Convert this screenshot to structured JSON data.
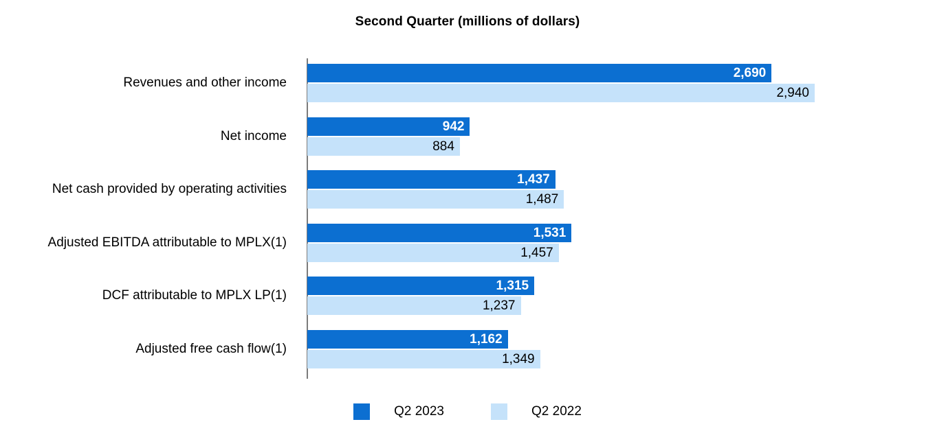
{
  "title": "Second Quarter (millions of dollars)",
  "colors": {
    "series_q2_2023": "#0c6fd1",
    "series_q2_2022": "#c5e2fa",
    "axis_line": "#7b7b7b",
    "background": "#ffffff",
    "dark_bar_label": "#ffffff",
    "light_bar_label": "#000000"
  },
  "chart_data": {
    "type": "bar",
    "orientation": "horizontal",
    "title": "Second Quarter (millions of dollars)",
    "categories": [
      "Revenues and other income",
      "Net income",
      "Net cash provided by operating activities",
      "Adjusted EBITDA attributable to MPLX(1)",
      "DCF attributable to MPLX LP(1)",
      "Adjusted free cash flow(1)"
    ],
    "series": [
      {
        "name": "Q2 2023",
        "color": "#0c6fd1",
        "values": [
          2690,
          942,
          1437,
          1531,
          1315,
          1162
        ],
        "labels": [
          "2,690",
          "942",
          "1,437",
          "1,531",
          "1,315",
          "1,162"
        ]
      },
      {
        "name": "Q2 2022",
        "color": "#c5e2fa",
        "values": [
          2940,
          884,
          1487,
          1457,
          1237,
          1349
        ],
        "labels": [
          "2,940",
          "884",
          "1,487",
          "1,457",
          "1,237",
          "1,349"
        ]
      }
    ],
    "value_axis_range": [
      0,
      2940
    ],
    "grid": false,
    "value_labels": "inside-end",
    "legend_position": "bottom-center"
  }
}
